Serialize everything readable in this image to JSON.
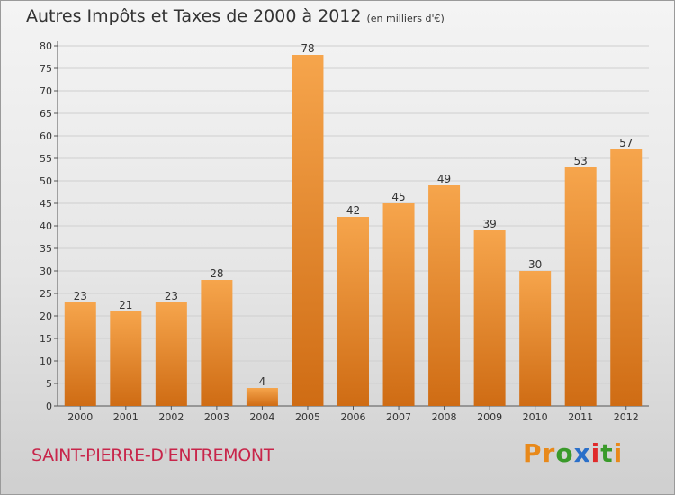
{
  "header": {
    "title": "Autres Impôts et Taxes de 2000 à 2012",
    "subtitle": "(en milliers d'€)"
  },
  "footer": {
    "commune": "SAINT-PIERRE-D'ENTREMONT",
    "brand": "Proxiti",
    "brand_colors": [
      "#e8891a",
      "#e8891a",
      "#3a9a2a",
      "#2a6fc9",
      "#e02a2a",
      "#3a9a2a",
      "#e8891a"
    ]
  },
  "colors": {
    "bar_light": "#f6a54c",
    "bar_dark": "#cf6c14",
    "grid": "#cfcfcf",
    "axis": "#555555"
  },
  "chart_data": {
    "type": "bar",
    "categories": [
      "2000",
      "2001",
      "2002",
      "2003",
      "2004",
      "2005",
      "2006",
      "2007",
      "2008",
      "2009",
      "2010",
      "2011",
      "2012"
    ],
    "values": [
      23,
      21,
      23,
      28,
      4,
      78,
      42,
      45,
      49,
      39,
      30,
      53,
      57
    ],
    "title": "Autres Impôts et Taxes de 2000 à 2012",
    "subtitle": "(en milliers d'€)",
    "ylim": [
      0,
      80
    ],
    "yticks": [
      0,
      5,
      10,
      15,
      20,
      25,
      30,
      35,
      40,
      45,
      50,
      55,
      60,
      65,
      70,
      75,
      80
    ],
    "grid": true,
    "legend": "none"
  }
}
